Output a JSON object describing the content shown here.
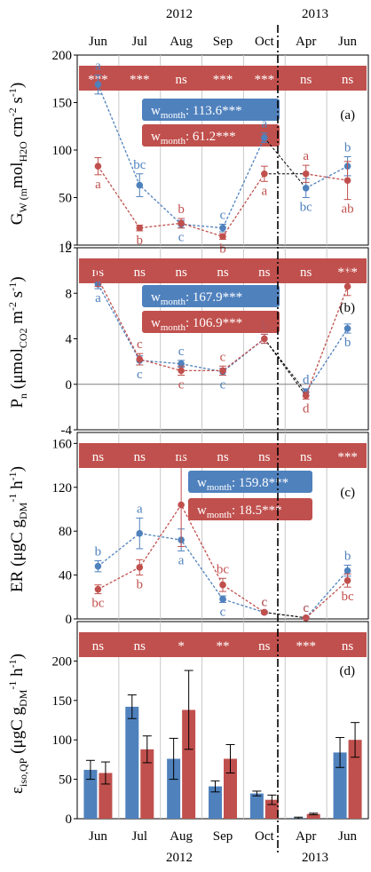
{
  "chart_data": [
    {
      "id": "a",
      "type": "line",
      "panel_label": "(a)",
      "ylabel_parts": [
        {
          "t": "G",
          "s": "n"
        },
        {
          "t": "W (m",
          "s": "sub"
        },
        {
          "t": "mol",
          "s": "n"
        },
        {
          "t": "H2O",
          "s": "sub"
        },
        {
          "t": " cm",
          "s": "n"
        },
        {
          "t": "-2",
          "s": "sup"
        },
        {
          "t": " s",
          "s": "n"
        },
        {
          "t": "-1",
          "s": "sup"
        },
        {
          "t": ")",
          "s": "n"
        }
      ],
      "ylim": [
        0,
        200
      ],
      "yticks": [
        0,
        50,
        100,
        150,
        200
      ],
      "significance": [
        "***",
        "***",
        "ns",
        "***",
        "***",
        "ns",
        "ns"
      ],
      "weight_boxes": [
        {
          "series": "blue",
          "label": "w",
          "sub": "month",
          "value": ": 113.6***"
        },
        {
          "series": "red",
          "label": "w",
          "sub": "month",
          "value": ":  61.2***"
        }
      ],
      "series": [
        {
          "color": "#4f81bd",
          "values": [
            169,
            63,
            22,
            18,
            113,
            60,
            83
          ],
          "errors": [
            10,
            12,
            4,
            4,
            5,
            10,
            10
          ],
          "letters": [
            "a",
            "bc",
            "c",
            "c",
            "a",
            "bc",
            "b"
          ]
        },
        {
          "color": "#c0504d",
          "values": [
            83,
            18,
            23,
            9,
            75,
            75,
            68
          ],
          "errors": [
            9,
            3,
            5,
            3,
            8,
            9,
            20
          ],
          "letters": [
            "a",
            "b",
            "b",
            "b",
            "a",
            "a",
            "ab"
          ]
        }
      ]
    },
    {
      "id": "b",
      "type": "line",
      "panel_label": "(b)",
      "ylabel_parts": [
        {
          "t": "P",
          "s": "n"
        },
        {
          "t": "n",
          "s": "sub"
        },
        {
          "t": " (μmol",
          "s": "n"
        },
        {
          "t": "CO2",
          "s": "sub"
        },
        {
          "t": " m",
          "s": "n"
        },
        {
          "t": "-2",
          "s": "sup"
        },
        {
          "t": " s",
          "s": "n"
        },
        {
          "t": "-1",
          "s": "sup"
        },
        {
          "t": ")",
          "s": "n"
        }
      ],
      "ylim": [
        -4,
        12
      ],
      "yticks": [
        -4,
        0,
        4,
        8,
        12
      ],
      "significance": [
        "ns",
        "ns",
        "ns",
        "ns",
        "ns",
        "ns",
        "***"
      ],
      "weight_boxes": [
        {
          "series": "blue",
          "label": "w",
          "sub": "month",
          "value": ": 167.9***"
        },
        {
          "series": "red",
          "label": "w",
          "sub": "month",
          "value": ": 106.9***"
        }
      ],
      "series": [
        {
          "color": "#4f81bd",
          "values": [
            8.8,
            2.1,
            1.8,
            1.1,
            4.0,
            -0.7,
            4.9
          ],
          "errors": [
            0.4,
            0.4,
            0.3,
            0.3,
            0.4,
            0.3,
            0.4
          ],
          "letters": [
            "a",
            "c",
            "c",
            "c",
            "b",
            "d",
            "b"
          ]
        },
        {
          "color": "#c0504d",
          "values": [
            9.3,
            2.2,
            1.2,
            1.2,
            4.0,
            -1.0,
            8.6
          ],
          "errors": [
            0.7,
            0.5,
            0.4,
            0.4,
            0.4,
            0.3,
            0.8
          ],
          "letters": [
            "a",
            "c",
            "c",
            "c",
            "b",
            "d",
            "a"
          ]
        }
      ]
    },
    {
      "id": "c",
      "type": "line",
      "panel_label": "(c)",
      "ylabel_parts": [
        {
          "t": "ER (μgC g",
          "s": "n"
        },
        {
          "t": "DM",
          "s": "sub"
        },
        {
          "t": "-1",
          "s": "sup"
        },
        {
          "t": " h",
          "s": "n"
        },
        {
          "t": "-1",
          "s": "sup"
        },
        {
          "t": ")",
          "s": "n"
        }
      ],
      "ylim": [
        0,
        170
      ],
      "yticks": [
        0,
        40,
        80,
        120,
        160
      ],
      "significance": [
        "ns",
        "ns",
        "ns",
        "ns",
        "ns",
        "ns",
        "***"
      ],
      "weight_boxes": [
        {
          "series": "blue",
          "label": "w",
          "sub": "month",
          "value": ": 159.8***"
        },
        {
          "series": "red",
          "label": "w",
          "sub": "month",
          "value": ": 18.5***"
        }
      ],
      "series": [
        {
          "color": "#4f81bd",
          "values": [
            48,
            78,
            72,
            18,
            6,
            1,
            44
          ],
          "errors": [
            5,
            14,
            10,
            3,
            1,
            0.5,
            5
          ],
          "letters": [
            "b",
            "a",
            "a",
            "c",
            "c",
            "c",
            "b"
          ]
        },
        {
          "color": "#c0504d",
          "values": [
            27,
            47,
            104,
            31,
            6,
            1,
            35
          ],
          "errors": [
            4,
            7,
            38,
            6,
            1,
            0.5,
            6
          ],
          "letters": [
            "bc",
            "b",
            "a",
            "bc",
            "c",
            "c",
            "bc"
          ]
        }
      ]
    },
    {
      "id": "d",
      "type": "bar",
      "panel_label": "(d)",
      "ylabel_parts": [
        {
          "t": "ε",
          "s": "n"
        },
        {
          "t": "iso,QP",
          "s": "sub"
        },
        {
          "t": " (μgC g",
          "s": "n"
        },
        {
          "t": "DM",
          "s": "sub"
        },
        {
          "t": "-1",
          "s": "sup"
        },
        {
          "t": " h",
          "s": "n"
        },
        {
          "t": "-1",
          "s": "sup"
        },
        {
          "t": ")",
          "s": "n"
        }
      ],
      "ylim": [
        0,
        250
      ],
      "yticks": [
        0,
        50,
        100,
        150,
        200
      ],
      "significance": [
        "ns",
        "ns",
        "*",
        "**",
        "ns",
        "***",
        "ns"
      ],
      "series": [
        {
          "color": "#4f81bd",
          "values": [
            62,
            142,
            76,
            41,
            32,
            1,
            84
          ],
          "errors": [
            12,
            15,
            26,
            7,
            3,
            1,
            19
          ]
        },
        {
          "color": "#c0504d",
          "values": [
            58,
            88,
            138,
            76,
            24,
            6,
            100
          ],
          "errors": [
            14,
            17,
            50,
            18,
            6,
            1,
            22
          ]
        }
      ]
    }
  ],
  "axis": {
    "months": [
      "Jun",
      "Jul",
      "Aug",
      "Sep",
      "Oct",
      "Apr",
      "Jun"
    ],
    "years": [
      {
        "label": "2012",
        "span": [
          0,
          4
        ]
      },
      {
        "label": "2013",
        "span": [
          5,
          6
        ]
      }
    ]
  },
  "colors": {
    "blue": "#4f81bd",
    "red": "#c0504d",
    "sig_bar": "#c0504d",
    "gridline": "#c8c8c8"
  }
}
